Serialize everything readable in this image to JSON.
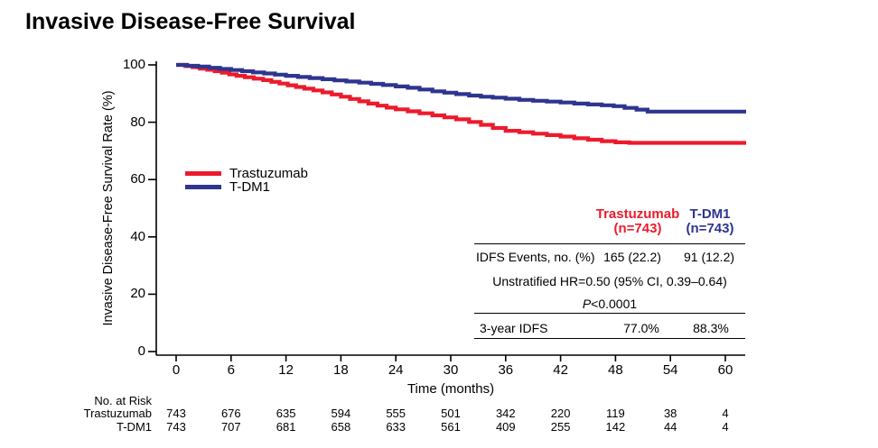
{
  "title": "Invasive Disease-Free Survival",
  "colors": {
    "trastuzumab_red": "#EC1B2C",
    "tdm1_blue": "#2D358F",
    "axis_black": "#000000",
    "background": "#FFFFFF"
  },
  "chart_data": {
    "type": "line",
    "subtype": "kaplan-meier-step",
    "title": "Invasive Disease-Free Survival",
    "xlabel": "Time (months)",
    "ylabel": "Invasive Disease-Free Survival Rate (%)",
    "xlim": [
      0,
      62
    ],
    "ylim": [
      0,
      100
    ],
    "x_ticks": [
      0,
      6,
      12,
      18,
      24,
      30,
      36,
      42,
      48,
      54,
      60
    ],
    "y_ticks": [
      0,
      20,
      40,
      60,
      80,
      100
    ],
    "grid": false,
    "legend_position": "inside-left-middle",
    "series": [
      {
        "name": "Trastuzumab",
        "color": "#EC1B2C",
        "points": [
          [
            0,
            100
          ],
          [
            1,
            99.6
          ],
          [
            1.8,
            99.2
          ],
          [
            2.6,
            98.7
          ],
          [
            3.4,
            98.3
          ],
          [
            4.2,
            97.8
          ],
          [
            5,
            97.3
          ],
          [
            5.8,
            96.7
          ],
          [
            6.6,
            96.2
          ],
          [
            7.5,
            95.7
          ],
          [
            8.5,
            95.2
          ],
          [
            9.5,
            94.7
          ],
          [
            10.4,
            94.1
          ],
          [
            11.3,
            93.5
          ],
          [
            12.2,
            92.9
          ],
          [
            13.1,
            92.3
          ],
          [
            14,
            91.7
          ],
          [
            15,
            91.1
          ],
          [
            16,
            90.4
          ],
          [
            17,
            89.7
          ],
          [
            18,
            88.9
          ],
          [
            19,
            88.1
          ],
          [
            20,
            87.3
          ],
          [
            21,
            86.5
          ],
          [
            22,
            85.8
          ],
          [
            23,
            85.1
          ],
          [
            24,
            84.5
          ],
          [
            25.3,
            83.8
          ],
          [
            26.6,
            83.1
          ],
          [
            28,
            82.4
          ],
          [
            29.3,
            81.7
          ],
          [
            30.6,
            81.0
          ],
          [
            32,
            80.1
          ],
          [
            33.3,
            79.1
          ],
          [
            34.6,
            78.0
          ],
          [
            36,
            77.0
          ],
          [
            37.5,
            76.5
          ],
          [
            39,
            76.0
          ],
          [
            40.5,
            75.5
          ],
          [
            42,
            75.0
          ],
          [
            43.5,
            74.4
          ],
          [
            45,
            73.9
          ],
          [
            46.5,
            73.4
          ],
          [
            48,
            73.0
          ],
          [
            49.5,
            72.8
          ],
          [
            62.2,
            72.8
          ]
        ]
      },
      {
        "name": "T-DM1",
        "color": "#2D358F",
        "points": [
          [
            0,
            100
          ],
          [
            1.2,
            99.7
          ],
          [
            2.4,
            99.4
          ],
          [
            3.6,
            99.0
          ],
          [
            4.8,
            98.6
          ],
          [
            6,
            98.2
          ],
          [
            7.2,
            97.8
          ],
          [
            8.4,
            97.4
          ],
          [
            9.6,
            97.0
          ],
          [
            10.8,
            96.6
          ],
          [
            12,
            96.2
          ],
          [
            13.3,
            95.8
          ],
          [
            14.6,
            95.4
          ],
          [
            16,
            95.0
          ],
          [
            17.3,
            94.6
          ],
          [
            18.6,
            94.2
          ],
          [
            20,
            93.8
          ],
          [
            21.3,
            93.4
          ],
          [
            22.6,
            93.0
          ],
          [
            24,
            92.5
          ],
          [
            25.3,
            92.0
          ],
          [
            26.6,
            91.4
          ],
          [
            28,
            90.8
          ],
          [
            29.3,
            90.3
          ],
          [
            30.6,
            89.8
          ],
          [
            32,
            89.3
          ],
          [
            33.3,
            88.9
          ],
          [
            34.6,
            88.6
          ],
          [
            36,
            88.2
          ],
          [
            37.5,
            87.8
          ],
          [
            39,
            87.5
          ],
          [
            40.5,
            87.2
          ],
          [
            42,
            86.9
          ],
          [
            43.5,
            86.5
          ],
          [
            45,
            86.2
          ],
          [
            46.5,
            85.9
          ],
          [
            47.8,
            85.6
          ],
          [
            49,
            85.0
          ],
          [
            50.3,
            84.4
          ],
          [
            51.5,
            83.7
          ],
          [
            62.2,
            83.7
          ]
        ]
      }
    ]
  },
  "axes": {
    "ylabel": "Invasive Disease-Free Survival Rate (%)",
    "xlabel": "Time (months)"
  },
  "legend": {
    "items": [
      {
        "label": "Trastuzumab",
        "color": "#EC1B2C"
      },
      {
        "label": "T-DM1",
        "color": "#2D358F"
      }
    ]
  },
  "stats_table": {
    "col1_header_line1": "Trastuzumab",
    "col1_header_line2": "(n=743)",
    "col2_header_line1": "T-DM1",
    "col2_header_line2": "(n=743)",
    "row1_label": "IDFS Events, no. (%)",
    "row1_col1": "165 (22.2)",
    "row1_col2": "91 (12.2)",
    "row2_text": "Unstratified HR=0.50 (95% CI, 0.39–0.64)",
    "row3_italic": "P",
    "row3_rest": "<0.0001",
    "row4_label": "3-year IDFS",
    "row4_col1": "77.0%",
    "row4_col2": "88.3%"
  },
  "risk_table": {
    "title": "No. at Risk",
    "rows": [
      {
        "label": "Trastuzumab",
        "values": [
          "743",
          "676",
          "635",
          "594",
          "555",
          "501",
          "342",
          "220",
          "119",
          "38",
          "4"
        ]
      },
      {
        "label": "T-DM1",
        "values": [
          "743",
          "707",
          "681",
          "658",
          "633",
          "561",
          "409",
          "255",
          "142",
          "44",
          "4"
        ]
      }
    ]
  }
}
